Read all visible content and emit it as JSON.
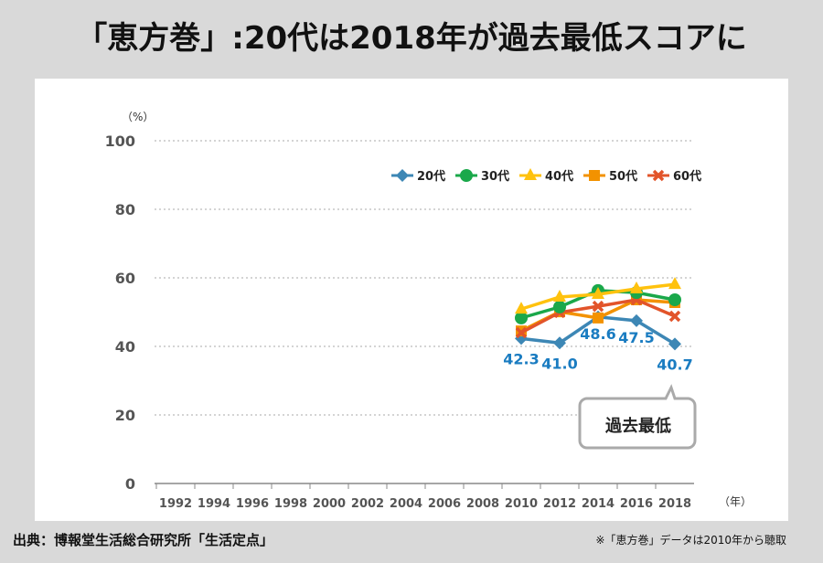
{
  "title": "「恵方巻」:20代は2018年が過去最低スコアに",
  "source": "出典：博報堂生活総合研究所「生活定点」",
  "note": "※「恵方巻」データは2010年から聴取",
  "chart_data": {
    "type": "line",
    "yunit": "（%）",
    "xunit": "（年）",
    "ylim": [
      0,
      100
    ],
    "yticks": [
      0,
      20,
      40,
      60,
      80,
      100
    ],
    "grid": true,
    "legend": "top-right",
    "categories": [
      "1992",
      "1994",
      "1996",
      "1998",
      "2000",
      "2002",
      "2004",
      "2006",
      "2008",
      "2010",
      "2012",
      "2014",
      "2016",
      "2018"
    ],
    "series": [
      {
        "name": "20代",
        "color": "#3d87b5",
        "marker": "diamond",
        "values": [
          null,
          null,
          null,
          null,
          null,
          null,
          null,
          null,
          null,
          42.3,
          41.0,
          48.6,
          47.5,
          40.7
        ],
        "labels": true
      },
      {
        "name": "30代",
        "color": "#1aa84a",
        "marker": "circle",
        "values": [
          null,
          null,
          null,
          null,
          null,
          null,
          null,
          null,
          null,
          48.3,
          51.5,
          56.3,
          55.7,
          53.6
        ]
      },
      {
        "name": "40代",
        "color": "#ffc20e",
        "marker": "triangle",
        "values": [
          null,
          null,
          null,
          null,
          null,
          null,
          null,
          null,
          null,
          50.9,
          54.4,
          55.2,
          56.8,
          58.1
        ]
      },
      {
        "name": "50代",
        "color": "#f39200",
        "marker": "square",
        "values": [
          null,
          null,
          null,
          null,
          null,
          null,
          null,
          null,
          null,
          44.5,
          50.1,
          48.3,
          53.6,
          52.8
        ]
      },
      {
        "name": "60代",
        "color": "#e2542a",
        "marker": "x",
        "values": [
          null,
          null,
          null,
          null,
          null,
          null,
          null,
          null,
          null,
          44.0,
          49.9,
          51.7,
          53.6,
          48.8
        ]
      }
    ],
    "label_color": "#1a7cc1",
    "callout": "過去最低"
  }
}
